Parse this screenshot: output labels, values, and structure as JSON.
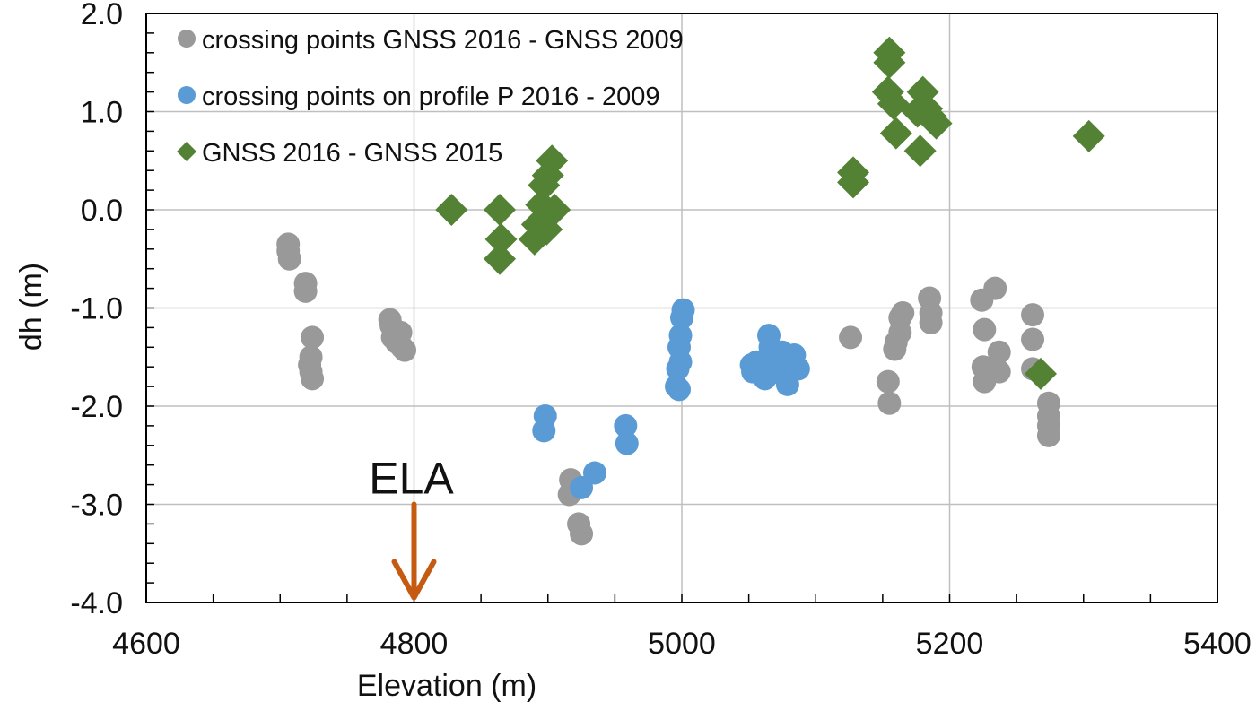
{
  "chart_data": {
    "type": "scatter",
    "title": "",
    "xlabel": "Elevation (m)",
    "ylabel": "dh (m)",
    "xlim": [
      4600,
      5400
    ],
    "ylim": [
      -4.0,
      2.0
    ],
    "xticks": [
      4600,
      4800,
      5000,
      5200,
      5400
    ],
    "xtick_labels": [
      "4600",
      "4800",
      "5000",
      "5200",
      "5400"
    ],
    "yticks": [
      2.0,
      1.0,
      0.0,
      -1.0,
      -2.0,
      -3.0,
      -4.0
    ],
    "ytick_labels": [
      "2.0",
      "1.0",
      "0.0",
      "-1.0",
      "-2.0",
      "-3.0",
      "-4.0"
    ],
    "grid": true,
    "legend_position": "top-left",
    "colors": {
      "gray": "#999999",
      "blue": "#5b9bd5",
      "green": "#548235",
      "arrow": "#c55a11"
    },
    "series": [
      {
        "name": "crossing points GNSS 2016 - GNSS 2009",
        "marker": "circle",
        "color": "#999999",
        "points": [
          [
            4706,
            -0.35
          ],
          [
            4706,
            -0.42
          ],
          [
            4707,
            -0.5
          ],
          [
            4719,
            -0.75
          ],
          [
            4719,
            -0.83
          ],
          [
            4724,
            -1.3
          ],
          [
            4723,
            -1.5
          ],
          [
            4722,
            -1.58
          ],
          [
            4723,
            -1.65
          ],
          [
            4724,
            -1.72
          ],
          [
            4782,
            -1.12
          ],
          [
            4783,
            -1.18
          ],
          [
            4785,
            -1.22
          ],
          [
            4790,
            -1.25
          ],
          [
            4784,
            -1.3
          ],
          [
            4787,
            -1.35
          ],
          [
            4791,
            -1.4
          ],
          [
            4793,
            -1.43
          ],
          [
            4917,
            -2.75
          ],
          [
            4916,
            -2.9
          ],
          [
            4923,
            -3.2
          ],
          [
            4925,
            -3.3
          ],
          [
            5126,
            -1.3
          ],
          [
            5154,
            -1.75
          ],
          [
            5155,
            -1.97
          ],
          [
            5159,
            -1.42
          ],
          [
            5160,
            -1.35
          ],
          [
            5163,
            -1.25
          ],
          [
            5163,
            -1.1
          ],
          [
            5165,
            -1.05
          ],
          [
            5185,
            -0.9
          ],
          [
            5186,
            -1.05
          ],
          [
            5186,
            -1.15
          ],
          [
            5224,
            -0.92
          ],
          [
            5226,
            -1.22
          ],
          [
            5225,
            -1.6
          ],
          [
            5226,
            -1.75
          ],
          [
            5234,
            -0.8
          ],
          [
            5237,
            -1.45
          ],
          [
            5237,
            -1.65
          ],
          [
            5262,
            -1.07
          ],
          [
            5262,
            -1.32
          ],
          [
            5262,
            -1.62
          ],
          [
            5274,
            -1.97
          ],
          [
            5274,
            -2.1
          ],
          [
            5274,
            -2.2
          ],
          [
            5274,
            -2.3
          ]
        ]
      },
      {
        "name": "crossing points on profile P 2016 - 2009",
        "marker": "circle",
        "color": "#5b9bd5",
        "points": [
          [
            4898,
            -2.1
          ],
          [
            4897,
            -2.25
          ],
          [
            4935,
            -2.68
          ],
          [
            4925,
            -2.83
          ],
          [
            4958,
            -2.2
          ],
          [
            4959,
            -2.38
          ],
          [
            5001,
            -1.02
          ],
          [
            5000,
            -1.1
          ],
          [
            4999,
            -1.28
          ],
          [
            4998,
            -1.4
          ],
          [
            4999,
            -1.55
          ],
          [
            4997,
            -1.62
          ],
          [
            4996,
            -1.8
          ],
          [
            4998,
            -1.83
          ],
          [
            5052,
            -1.58
          ],
          [
            5053,
            -1.65
          ],
          [
            5056,
            -1.55
          ],
          [
            5058,
            -1.63
          ],
          [
            5062,
            -1.72
          ],
          [
            5065,
            -1.28
          ],
          [
            5066,
            -1.4
          ],
          [
            5068,
            -1.5
          ],
          [
            5070,
            -1.62
          ],
          [
            5075,
            -1.45
          ],
          [
            5077,
            -1.7
          ],
          [
            5079,
            -1.78
          ],
          [
            5082,
            -1.58
          ],
          [
            5084,
            -1.48
          ],
          [
            5087,
            -1.62
          ]
        ]
      },
      {
        "name": "GNSS 2016 - GNSS 2015",
        "marker": "diamond",
        "color": "#548235",
        "points": [
          [
            4828,
            0.0
          ],
          [
            4864,
            0.0
          ],
          [
            4865,
            -0.3
          ],
          [
            4864,
            -0.5
          ],
          [
            4890,
            -0.3
          ],
          [
            4892,
            -0.15
          ],
          [
            4895,
            0.05
          ],
          [
            4897,
            0.25
          ],
          [
            4900,
            0.35
          ],
          [
            4903,
            0.5
          ],
          [
            4905,
            0.0
          ],
          [
            4899,
            -0.2
          ],
          [
            5128,
            0.38
          ],
          [
            5128,
            0.28
          ],
          [
            5155,
            1.6
          ],
          [
            5155,
            1.5
          ],
          [
            5154,
            1.2
          ],
          [
            5158,
            1.08
          ],
          [
            5160,
            0.78
          ],
          [
            5176,
            1.0
          ],
          [
            5178,
            0.6
          ],
          [
            5180,
            1.2
          ],
          [
            5183,
            1.03
          ],
          [
            5186,
            0.95
          ],
          [
            5190,
            0.88
          ],
          [
            5304,
            0.75
          ],
          [
            5268,
            -1.67
          ]
        ]
      }
    ],
    "annotations": [
      {
        "text": "ELA",
        "x": 4800,
        "arrow_from_y": -3.0,
        "arrow_to_y": -3.95
      }
    ]
  }
}
